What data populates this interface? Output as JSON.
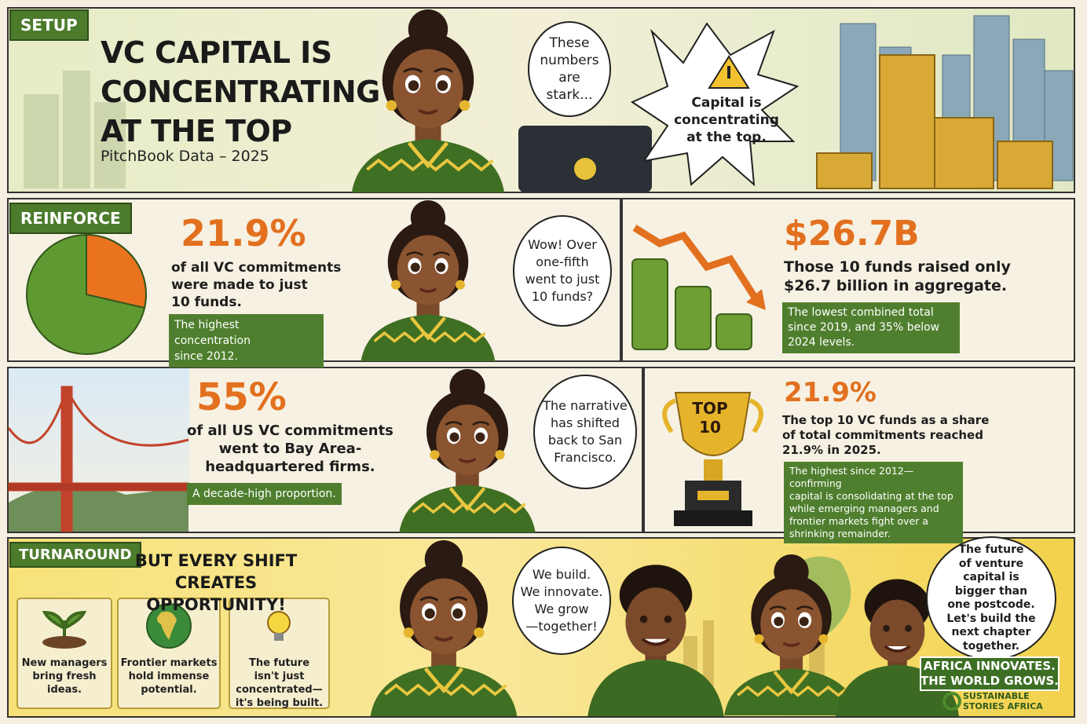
{
  "setup": {
    "tag": "SETUP",
    "title_lines": [
      "VC CAPITAL IS",
      "CONCENTRATING",
      "AT THE TOP"
    ],
    "source": "PitchBook Data – 2025",
    "speech": [
      "These",
      "numbers are",
      "stark..."
    ],
    "alert": [
      "Capital is",
      "concentrating",
      "at the top."
    ]
  },
  "reinforce": {
    "tag": "REINFORCE",
    "stat": {
      "figure": "21.9%",
      "text": [
        "of all VC commitments",
        "were made to just",
        "10 funds."
      ],
      "note": [
        "The highest concentration",
        "since 2012."
      ]
    },
    "speech": [
      "Wow! Over",
      "one-fifth",
      "went to just",
      "10 funds?"
    ],
    "stat2": {
      "figure": "$26.7B",
      "text": [
        "Those 10 funds raised only",
        "$26.7 billion in aggregate."
      ],
      "note": [
        "The lowest combined total",
        "since 2019, and 35% below",
        "2024 levels."
      ]
    }
  },
  "bay_area": {
    "stat": {
      "figure": "55%",
      "text": [
        "of all US VC commitments",
        "went to Bay Area-",
        "headquartered firms."
      ],
      "note": [
        "A decade-high proportion."
      ]
    },
    "speech": [
      "The narrative",
      "has shifted",
      "back to San",
      "Francisco."
    ],
    "trophy": [
      "TOP",
      "10"
    ],
    "stat2": {
      "figure": "21.9%",
      "text": [
        "The top 10 VC funds as a share",
        "of total commitments reached",
        "21.9% in 2025."
      ],
      "note": [
        "The highest since 2012—confirming",
        "capital is consolidating at the top",
        "while emerging managers and",
        "frontier markets fight over a",
        "shrinking remainder."
      ]
    }
  },
  "turnaround": {
    "tag": "TURNAROUND",
    "heading": [
      "BUT EVERY SHIFT",
      "CREATES OPPORTUNITY!"
    ],
    "cards": [
      [
        "New managers",
        "bring fresh",
        "ideas."
      ],
      [
        "Frontier markets",
        "hold immense",
        "potential."
      ],
      [
        "The future",
        "isn't just",
        "concentrated—",
        "it's being built."
      ]
    ],
    "speech": [
      "We build.",
      "We innovate.",
      "We grow",
      "—together!"
    ],
    "closing": [
      "The future",
      "of venture",
      "capital is",
      "bigger than",
      "one postcode.",
      "Let's build the",
      "next chapter",
      "together."
    ],
    "banner": [
      "AFRICA INNOVATES.",
      "THE WORLD GROWS."
    ],
    "logo": [
      "SUSTAINABLE",
      "STORIES AFRICA"
    ]
  }
}
